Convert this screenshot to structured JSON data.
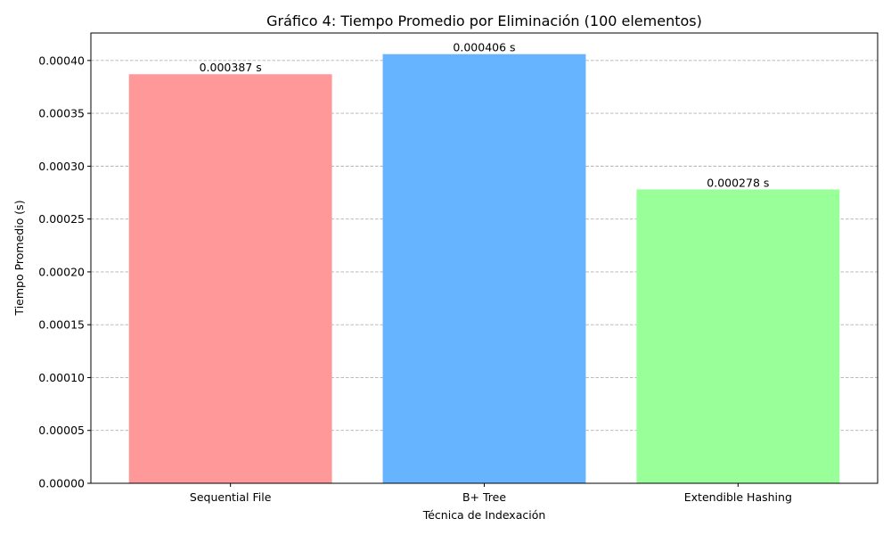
{
  "chart_data": {
    "type": "bar",
    "title": "Gráfico 4: Tiempo Promedio por Eliminación (100 elementos)",
    "xlabel": "Técnica de Indexación",
    "ylabel": "Tiempo Promedio (s)",
    "categories": [
      "Sequential File",
      "B+ Tree",
      "Extendible Hashing"
    ],
    "values": [
      0.000387,
      0.000406,
      0.000278
    ],
    "data_labels": [
      "0.000387 s",
      "0.000406 s",
      "0.000278 s"
    ],
    "colors": [
      "#ff9999",
      "#66b3ff",
      "#99ff99"
    ],
    "ylim": [
      0,
      0.000426
    ],
    "yticks": [
      0,
      5e-05,
      0.0001,
      0.00015,
      0.0002,
      0.00025,
      0.0003,
      0.00035,
      0.0004
    ],
    "ytick_labels": [
      "0.00000",
      "0.00005",
      "0.00010",
      "0.00015",
      "0.00020",
      "0.00025",
      "0.00030",
      "0.00035",
      "0.00040"
    ],
    "grid": "y-dashed",
    "legend": "none"
  }
}
